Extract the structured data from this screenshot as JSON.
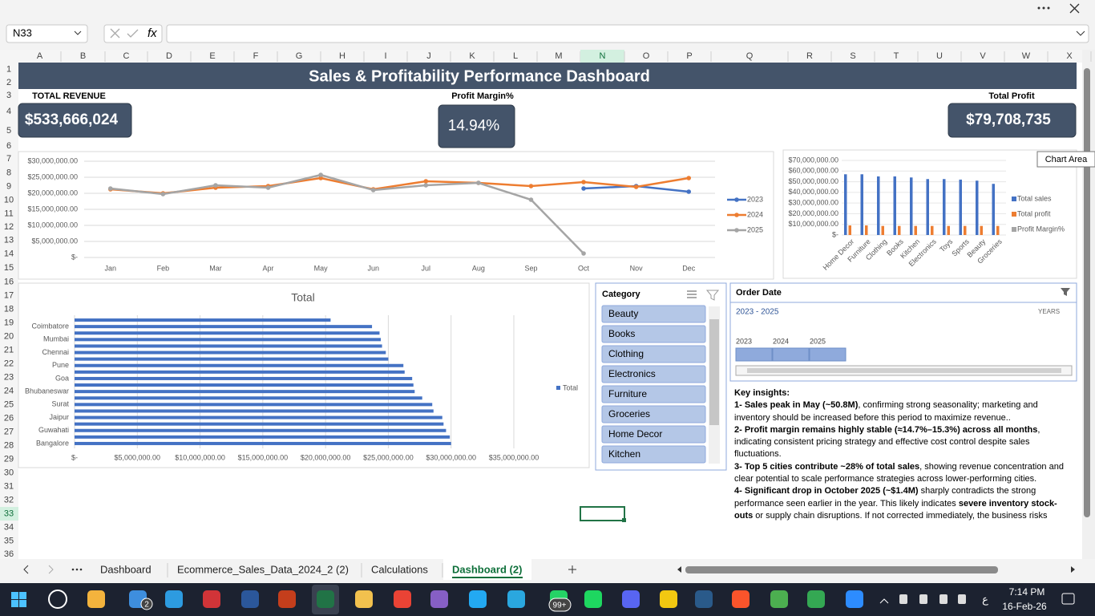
{
  "formula_bar": {
    "name_box": "N33",
    "fx_label": "fx"
  },
  "sheet": {
    "columns": [
      "A",
      "B",
      "C",
      "D",
      "E",
      "F",
      "G",
      "H",
      "I",
      "J",
      "K",
      "L",
      "M",
      "N",
      "O",
      "P",
      "Q",
      "R",
      "S",
      "T",
      "U",
      "V",
      "W",
      "X"
    ],
    "rows": [
      1,
      2,
      3,
      4,
      5,
      6,
      7,
      8,
      9,
      10,
      11,
      12,
      13,
      14,
      15,
      16,
      17,
      18,
      19,
      20,
      21,
      22,
      23,
      24,
      25,
      26,
      27,
      28,
      29,
      30,
      31,
      32,
      33,
      34,
      35,
      36
    ],
    "tabs": [
      "Dashboard",
      "Ecommerce_Sales_Data_2024_2 (2)",
      "Calculations",
      "Dashboard (2)"
    ]
  },
  "dashboard": {
    "title": "Sales & Profitability Performance Dashboard",
    "kpis": [
      {
        "label": "TOTAL REVENUE",
        "value": "$533,666,024"
      },
      {
        "label": "Profit Margin%",
        "value": "14.94%"
      },
      {
        "label": "Total Profit",
        "value": "$79,708,735"
      }
    ],
    "tooltip": "Chart Area"
  },
  "chart_data": [
    {
      "type": "line",
      "categories": [
        "Jan",
        "Feb",
        "Mar",
        "Apr",
        "May",
        "Jun",
        "Jul",
        "Aug",
        "Sep",
        "Oct",
        "Nov",
        "Dec"
      ],
      "series": [
        {
          "name": "2023",
          "color": "#4472c4",
          "values": [
            null,
            null,
            null,
            null,
            null,
            null,
            null,
            null,
            null,
            21500000,
            22250000,
            20500000
          ]
        },
        {
          "name": "2024",
          "color": "#ed7d31",
          "values": [
            21250000,
            20000000,
            21750000,
            22250000,
            24750000,
            21250000,
            23750000,
            23250000,
            22250000,
            23500000,
            22000000,
            24750000
          ]
        },
        {
          "name": "2025",
          "color": "#a5a5a5",
          "values": [
            21500000,
            19750000,
            22500000,
            21750000,
            25750000,
            21000000,
            22500000,
            23250000,
            18000000,
            1250000,
            null,
            null
          ]
        }
      ],
      "ylim": [
        0,
        30000000
      ],
      "yticks": [
        {
          "value": 0,
          "label": "$-"
        },
        {
          "value": 5000000,
          "label": "$5,000,000.00"
        },
        {
          "value": 10000000,
          "label": "$10,000,000.00"
        },
        {
          "value": 15000000,
          "label": "$15,000,000.00"
        },
        {
          "value": 20000000,
          "label": "$20,000,000.00"
        },
        {
          "value": 25000000,
          "label": "$25,000,000.00"
        },
        {
          "value": 30000000,
          "label": "$30,000,000.00"
        }
      ],
      "grid": true,
      "legend": "right"
    },
    {
      "type": "bar",
      "categories": [
        "Home Decor",
        "Furniture",
        "Clothing",
        "Books",
        "Kitchen",
        "Electronics",
        "Toys",
        "Sports",
        "Beauty",
        "Groceries"
      ],
      "series": [
        {
          "name": "Total sales",
          "color": "#4472c4",
          "values": [
            57000000,
            57000000,
            55000000,
            55000000,
            54000000,
            52500000,
            52500000,
            52000000,
            51000000,
            48000000
          ]
        },
        {
          "name": "Total profit",
          "color": "#ed7d31",
          "values": [
            9000000,
            9000000,
            8500000,
            8500000,
            8500000,
            8500000,
            8500000,
            8500000,
            8500000,
            8500000
          ]
        },
        {
          "name": "Profit Margin%",
          "color": "#a5a5a5",
          "values": [
            0,
            0,
            0,
            0,
            0,
            0,
            0,
            0,
            0,
            0
          ]
        }
      ],
      "ylim": [
        0,
        70000000
      ],
      "yticks": [
        {
          "value": 0,
          "label": "$-"
        },
        {
          "value": 10000000,
          "label": "$10,000,000.00"
        },
        {
          "value": 20000000,
          "label": "$20,000,000.00"
        },
        {
          "value": 30000000,
          "label": "$30,000,000.00"
        },
        {
          "value": 40000000,
          "label": "$40,000,000.00"
        },
        {
          "value": 50000000,
          "label": "$50,000,000.00"
        },
        {
          "value": 60000000,
          "label": "$60,000,000.00"
        },
        {
          "value": 70000000,
          "label": "$70,000,000.00"
        }
      ],
      "grid": true,
      "legend": "right"
    },
    {
      "type": "hbar",
      "title": "Total",
      "categories": [
        null,
        "Coimbatore",
        null,
        "Mumbai",
        null,
        "Chennai",
        null,
        "Pune",
        null,
        "Goa",
        null,
        "Bhubaneswar",
        null,
        "Surat",
        null,
        "Jaipur",
        null,
        "Guwahati",
        null,
        "Bangalore"
      ],
      "series": [
        {
          "name": "Total",
          "color": "#4472c4",
          "values": [
            20400000,
            23700000,
            24300000,
            24400000,
            24500000,
            24800000,
            25000000,
            26200000,
            26300000,
            26900000,
            27000000,
            27100000,
            27700000,
            28500000,
            28600000,
            29300000,
            29400000,
            29600000,
            29900000,
            30000000
          ]
        }
      ],
      "xlim": [
        0,
        35000000
      ],
      "xticks": [
        {
          "value": 0,
          "label": "$-"
        },
        {
          "value": 5000000,
          "label": "$5,000,000.00"
        },
        {
          "value": 10000000,
          "label": "$10,000,000.00"
        },
        {
          "value": 15000000,
          "label": "$15,000,000.00"
        },
        {
          "value": 20000000,
          "label": "$20,000,000.00"
        },
        {
          "value": 25000000,
          "label": "$25,000,000.00"
        },
        {
          "value": 30000000,
          "label": "$30,000,000.00"
        },
        {
          "value": 35000000,
          "label": "$35,000,000.00"
        }
      ],
      "grid": true,
      "legend": "right"
    }
  ],
  "slicer": {
    "title": "Category",
    "items": [
      "Beauty",
      "Books",
      "Clothing",
      "Electronics",
      "Furniture",
      "Groceries",
      "Home Decor",
      "Kitchen"
    ]
  },
  "timeline": {
    "title": "Order  Date",
    "range": "2023 - 2025",
    "level": "YEARS",
    "years": [
      "2023",
      "2024",
      "2025"
    ]
  },
  "insights": {
    "title": "Key insights:",
    "items": [
      [
        {
          "text": "1- Sales peak in May (~50.8M)",
          "bold": true
        },
        {
          "text": ", confirming strong seasonality; marketing and inventory should be increased before this period to maximize revenue..",
          "bold": false
        }
      ],
      [
        {
          "text": "2- Profit margin remains highly stable (≈14.7%–15.3%) across all months",
          "bold": true
        },
        {
          "text": ", indicating consistent pricing strategy and effective cost control despite sales fluctuations.",
          "bold": false
        }
      ],
      [
        {
          "text": "3- Top 5 cities contribute ~28% of total sales",
          "bold": true
        },
        {
          "text": ", showing revenue concentration and clear potential to scale performance strategies across lower-performing cities.",
          "bold": false
        }
      ],
      [
        {
          "text": "4- Significant drop in October 2025 (~$1.4M)",
          "bold": true
        },
        {
          "text": " sharply contradicts the strong performance seen earlier in the year. This likely indicates ",
          "bold": false
        },
        {
          "text": "severe inventory stock-outs",
          "bold": true
        },
        {
          "text": " or supply chain disruptions. If not corrected immediately, the business risks",
          "bold": false
        }
      ]
    ]
  },
  "taskbar": {
    "mail_badge": "2",
    "whatsapp_badge": "99+",
    "ime": "ع",
    "time": "7:14 PM",
    "date": "16-Feb-26"
  }
}
